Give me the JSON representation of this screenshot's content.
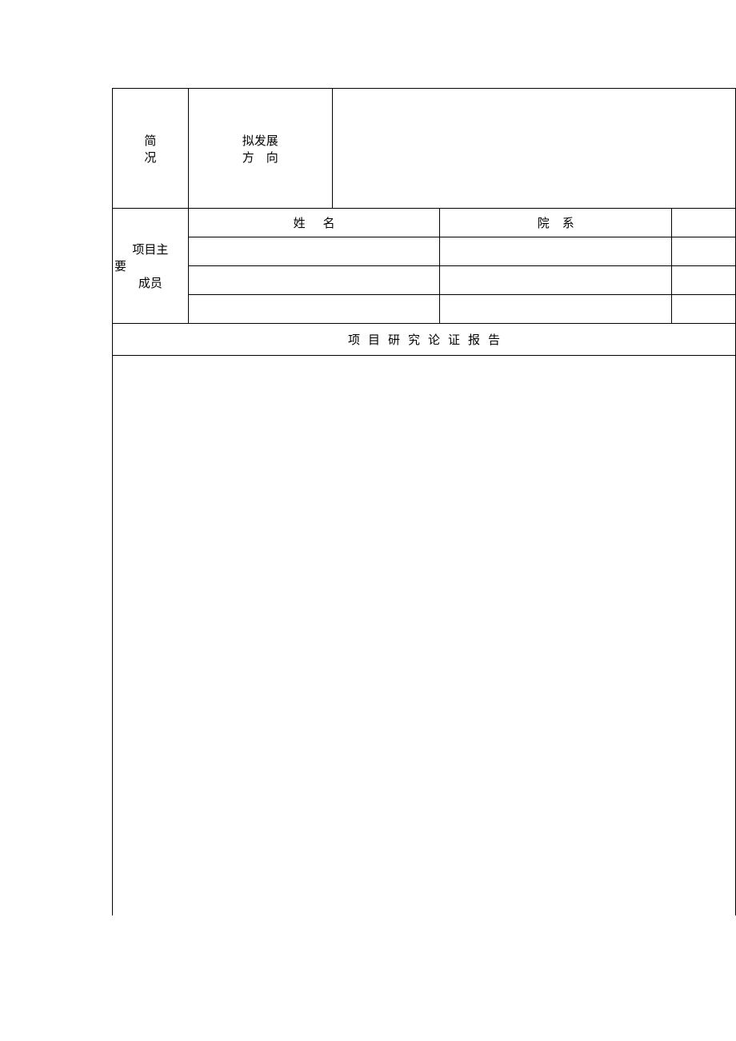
{
  "brief": {
    "left_l1": "简",
    "left_l2": "况",
    "dev_l1": "拟发展",
    "dev_l2": "方　向"
  },
  "members": {
    "label_l1": "项目主",
    "label_l2": "要",
    "label_l3": "成员",
    "col_name": "姓名",
    "col_dept": "院系",
    "rows": [
      {
        "name": "",
        "dept": "",
        "extra": ""
      },
      {
        "name": "",
        "dept": "",
        "extra": ""
      },
      {
        "name": "",
        "dept": "",
        "extra": ""
      }
    ]
  },
  "report": {
    "title": "项目研究论证报告",
    "body": ""
  },
  "style": {
    "border_color": "#000000",
    "background": "#ffffff",
    "text_color": "#000000",
    "font_size_pt": 11
  }
}
